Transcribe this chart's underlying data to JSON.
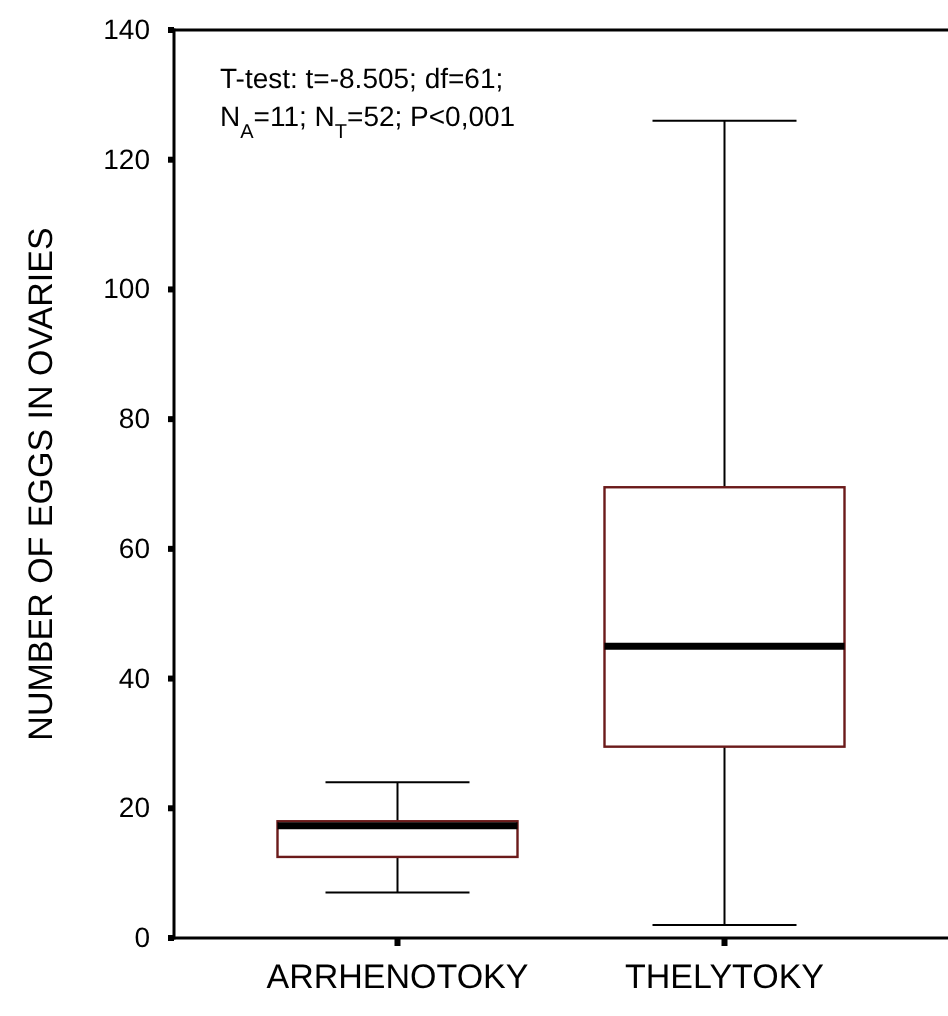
{
  "chart_data": {
    "type": "box",
    "ylabel": "NUMBER OF EGGS IN OVARIES",
    "categories": [
      "ARRHENOTOKY",
      "THELYTOKY"
    ],
    "boxes": [
      {
        "low": 7,
        "q1": 12.5,
        "median": 17.3,
        "q3": 18,
        "high": 24
      },
      {
        "low": 2,
        "q1": 29.5,
        "median": 45,
        "q3": 69.5,
        "high": 126
      }
    ],
    "color": "#6b1a1a",
    "ylim": [
      0,
      140
    ],
    "yticks": [
      0,
      20,
      40,
      60,
      80,
      100,
      120,
      140
    ],
    "annotations": [
      "T-test: t=-8.505; df=61;\nN$_{A}$=11; N$_{T}$=52; P<0,001"
    ]
  }
}
